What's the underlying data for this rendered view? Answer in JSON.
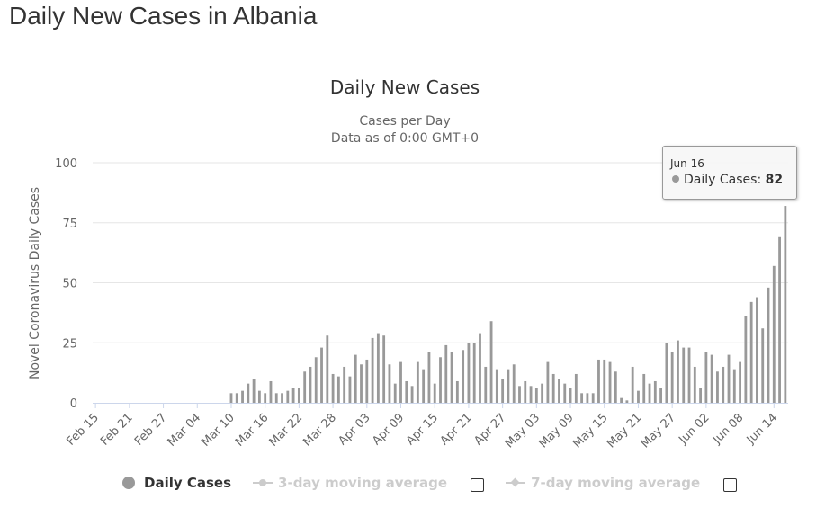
{
  "page": {
    "heading": "Daily New Cases in Albania"
  },
  "chart_data": {
    "type": "bar",
    "title": "Daily New Cases",
    "subtitle_lines": [
      "Cases per Day",
      "Data as of 0:00 GMT+0"
    ],
    "ylabel": "Novel Coronavirus Daily Cases",
    "xlabel": "",
    "ylim": [
      0,
      100
    ],
    "y_ticks": [
      0,
      25,
      50,
      75,
      100
    ],
    "grid": true,
    "start_date": "2020-02-15",
    "x_tick_labels": [
      "Feb 15",
      "Feb 21",
      "Feb 27",
      "Mar 04",
      "Mar 10",
      "Mar 16",
      "Mar 22",
      "Mar 28",
      "Apr 03",
      "Apr 09",
      "Apr 15",
      "Apr 21",
      "Apr 27",
      "May 03",
      "May 09",
      "May 15",
      "May 21",
      "May 27",
      "Jun 02",
      "Jun 08",
      "Jun 14"
    ],
    "series": [
      {
        "name": "Daily Cases",
        "color": "#999999",
        "values": [
          0,
          0,
          0,
          0,
          0,
          0,
          0,
          0,
          0,
          0,
          0,
          0,
          0,
          0,
          0,
          0,
          0,
          0,
          0,
          0,
          0,
          0,
          0,
          0,
          4,
          4,
          5,
          8,
          10,
          5,
          4,
          9,
          4,
          4,
          5,
          6,
          6,
          13,
          15,
          19,
          23,
          28,
          12,
          11,
          15,
          11,
          20,
          16,
          18,
          27,
          29,
          28,
          16,
          8,
          17,
          9,
          7,
          17,
          14,
          21,
          8,
          19,
          24,
          21,
          9,
          22,
          25,
          25,
          29,
          15,
          34,
          14,
          10,
          14,
          16,
          7,
          9,
          7,
          6,
          8,
          17,
          12,
          10,
          8,
          6,
          12,
          4,
          4,
          4,
          18,
          18,
          17,
          13,
          2,
          1,
          15,
          5,
          12,
          8,
          9,
          6,
          25,
          21,
          26,
          23,
          23,
          15,
          6,
          21,
          20,
          13,
          15,
          20,
          14,
          17,
          36,
          42,
          44,
          31,
          48,
          57,
          69,
          82
        ]
      }
    ],
    "legend": [
      {
        "name": "Daily Cases",
        "state": "visible"
      },
      {
        "name": "3-day moving average",
        "state": "hidden"
      },
      {
        "name": "7-day moving average",
        "state": "hidden"
      }
    ],
    "tooltip": {
      "date": "Jun 16",
      "series_name": "Daily Cases",
      "value_text": "82",
      "label_sep": ": "
    }
  },
  "colors": {
    "bar": "#999999",
    "grid": "#e6e6e6",
    "axis_text": "#666666",
    "title": "#333333"
  }
}
